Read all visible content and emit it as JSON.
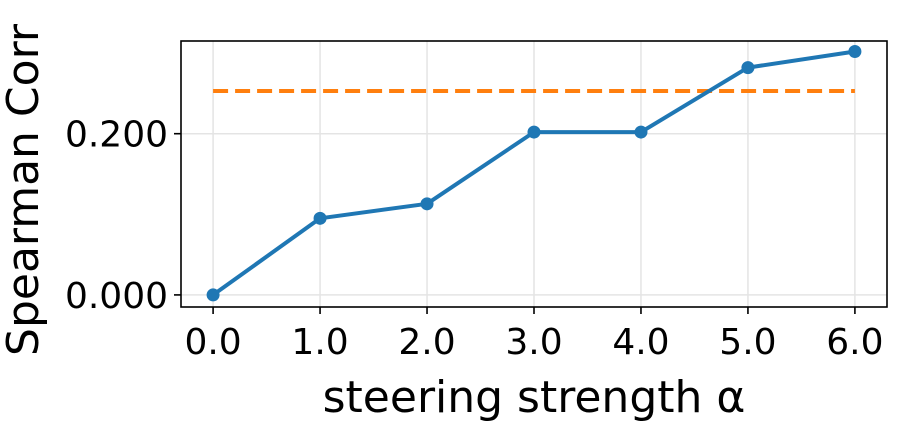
{
  "chart_data": {
    "type": "line",
    "title": "",
    "xlabel": "steering strength α",
    "ylabel": "Spearman Corr",
    "x": [
      0.0,
      1.0,
      2.0,
      3.0,
      4.0,
      5.0,
      6.0
    ],
    "x_tick_labels": [
      "0.0",
      "1.0",
      "2.0",
      "3.0",
      "4.0",
      "5.0",
      "6.0"
    ],
    "y_ticks": [
      0.0,
      0.2
    ],
    "y_tick_labels": [
      "0.000",
      "0.200"
    ],
    "xlim": [
      -0.3,
      6.3
    ],
    "ylim": [
      -0.015,
      0.315
    ],
    "grid": true,
    "series": [
      {
        "values": [
          0.0,
          0.095,
          0.113,
          0.202,
          0.202,
          0.282,
          0.302
        ],
        "color": "#1f77b4",
        "style": "solid",
        "marker": "circle"
      }
    ],
    "reference_lines": [
      {
        "y": 0.253,
        "color": "#ff7f0e",
        "style": "dashed"
      }
    ]
  }
}
